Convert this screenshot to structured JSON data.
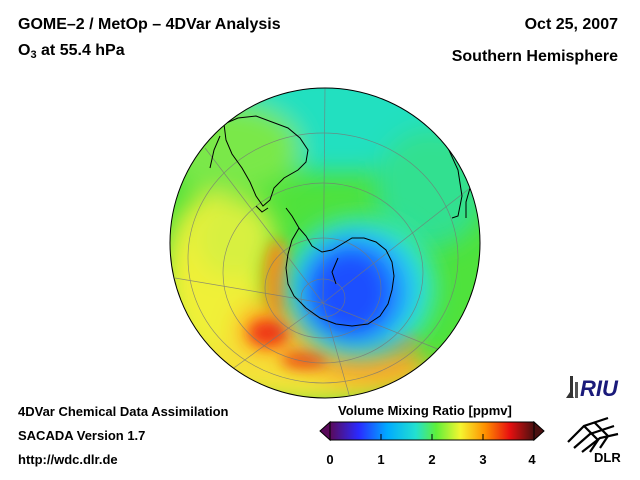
{
  "header": {
    "title": "GOME–2 / MetOp – 4DVar Analysis",
    "subtitle_species": "O",
    "subtitle_index": "3",
    "subtitle_level": " at 55.4 hPa",
    "date": "Oct 25, 2007",
    "region": "Southern Hemisphere"
  },
  "footer": {
    "line1": "4DVar Chemical Data Assimilation",
    "line2": "SACADA Version 1.7",
    "line3": "http://wdc.dlr.de"
  },
  "colorbar": {
    "title": "Volume Mixing Ratio [ppmv]",
    "ticks": [
      "0",
      "1",
      "2",
      "3",
      "4"
    ],
    "range": [
      0,
      4
    ],
    "stops": [
      "#5a0a5a",
      "#2a2aff",
      "#00aaff",
      "#22e0d0",
      "#5ef03a",
      "#f5f530",
      "#ff9000",
      "#e81010",
      "#4a1010"
    ]
  },
  "logos": {
    "riu": "RIU",
    "dlr": "DLR"
  },
  "map": {
    "projection": "orthographic",
    "hemisphere": "south",
    "ozone_hole_color": "#1a50ff",
    "background_field_color": "#4fe23c",
    "outline_color": "#000000"
  }
}
